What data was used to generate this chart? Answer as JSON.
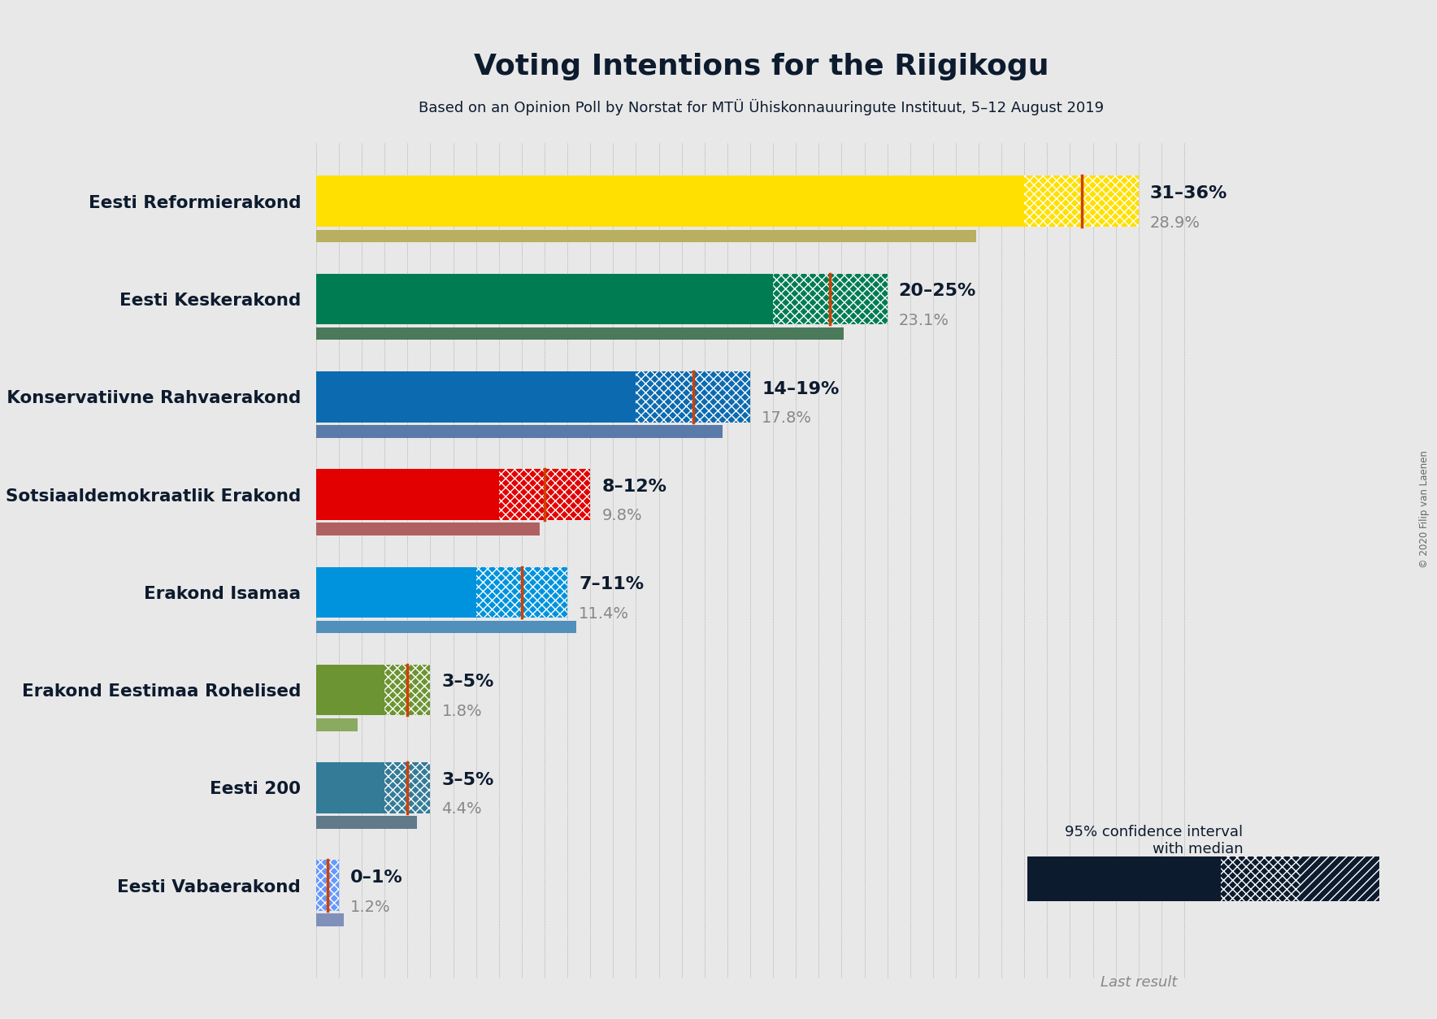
{
  "title": "Voting Intentions for the Riigikogu",
  "subtitle": "Based on an Opinion Poll by Norstat for MTÜ Ühiskonnauuringute Instituut, 5–12 August 2019",
  "copyright": "© 2020 Filip van Laenen",
  "background_color": "#e8e8e8",
  "parties": [
    {
      "name": "Eesti Reformierakond",
      "ci_low": 31,
      "ci_high": 36,
      "median": 33.5,
      "last_result": 28.9,
      "color": "#FFE000",
      "last_color": "#b8b060"
    },
    {
      "name": "Eesti Keskerakond",
      "ci_low": 20,
      "ci_high": 25,
      "median": 22.5,
      "last_result": 23.1,
      "color": "#007C53",
      "last_color": "#4a7a5a"
    },
    {
      "name": "Eesti Konservatiivne Rahvaerakond",
      "ci_low": 14,
      "ci_high": 19,
      "median": 16.5,
      "last_result": 17.8,
      "color": "#0C6AB0",
      "last_color": "#5a7aaa"
    },
    {
      "name": "Sotsiaaldemokraatlik Erakond",
      "ci_low": 8,
      "ci_high": 12,
      "median": 10.0,
      "last_result": 9.8,
      "color": "#E30000",
      "last_color": "#b06060"
    },
    {
      "name": "Erakond Isamaa",
      "ci_low": 7,
      "ci_high": 11,
      "median": 9.0,
      "last_result": 11.4,
      "color": "#0093DD",
      "last_color": "#5090bb"
    },
    {
      "name": "Erakond Eestimaa Rohelised",
      "ci_low": 3,
      "ci_high": 5,
      "median": 4.0,
      "last_result": 1.8,
      "color": "#6C9432",
      "last_color": "#8aaa60"
    },
    {
      "name": "Eesti 200",
      "ci_low": 3,
      "ci_high": 5,
      "median": 4.0,
      "last_result": 4.4,
      "color": "#347B98",
      "last_color": "#607a8a"
    },
    {
      "name": "Eesti Vabaerakond",
      "ci_low": 0,
      "ci_high": 1,
      "median": 0.5,
      "last_result": 1.2,
      "color": "#6699FF",
      "last_color": "#8090bb"
    }
  ],
  "labels": [
    "31–36%",
    "20–25%",
    "14–19%",
    "8–12%",
    "7–11%",
    "3–5%",
    "3–5%",
    "0–1%"
  ],
  "sub_labels": [
    "28.9%",
    "23.1%",
    "17.8%",
    "9.8%",
    "11.4%",
    "1.8%",
    "4.4%",
    "1.2%"
  ],
  "xlim_max": 39,
  "bar_height": 0.52,
  "last_bar_height": 0.13,
  "median_line_color": "#D04000",
  "legend_box_color": "#0d1b2e",
  "legend_label": "95% confidence interval\nwith median",
  "legend_last_label": "Last result",
  "legend_last_color": "#888888"
}
